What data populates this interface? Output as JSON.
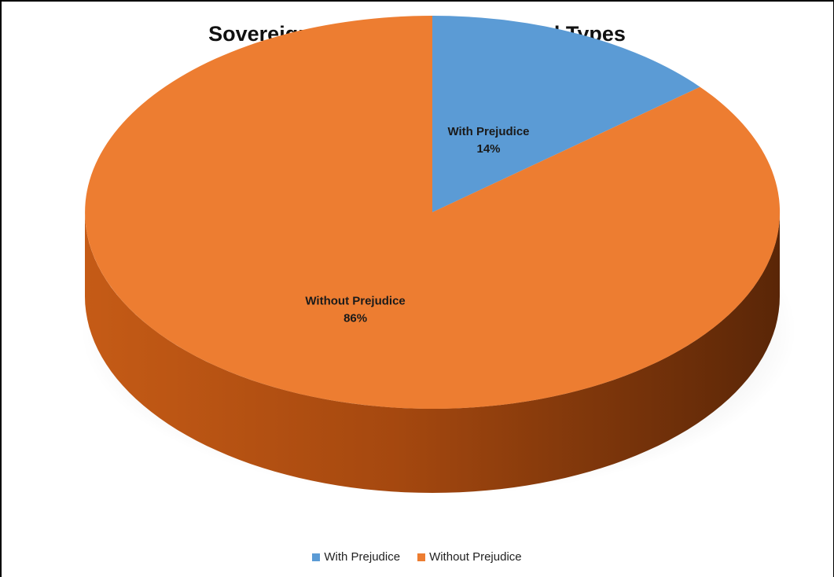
{
  "chart_data": {
    "type": "pie",
    "title": "Sovereign Citizen Cases Dismissal Types",
    "categories": [
      "With Prejudice",
      "Without Prejudice"
    ],
    "values": [
      14,
      86
    ],
    "unit": "%",
    "data_labels": [
      "With Prejudice\n14%",
      "Without Prejudice\n86%"
    ],
    "colors": [
      "#5b9bd5",
      "#ed7d31"
    ],
    "legend_position": "bottom",
    "style": "3d"
  }
}
